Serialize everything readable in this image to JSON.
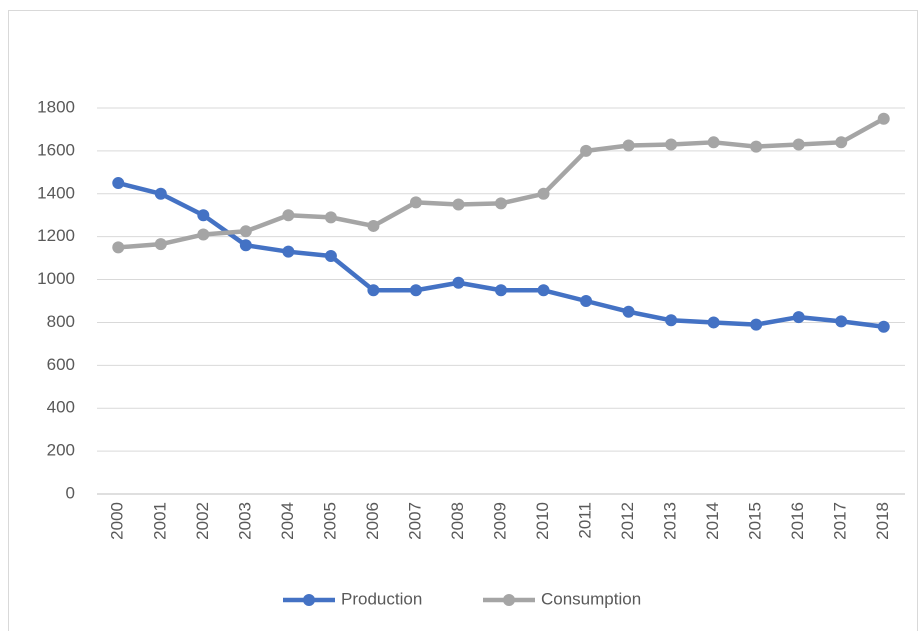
{
  "chart_data": {
    "type": "line",
    "categories": [
      "2000",
      "2001",
      "2002",
      "2003",
      "2004",
      "2005",
      "2006",
      "2007",
      "2008",
      "2009",
      "2010",
      "2011",
      "2012",
      "2013",
      "2014",
      "2015",
      "2016",
      "2017",
      "2018"
    ],
    "series": [
      {
        "name": "Production",
        "color": "#4472c4",
        "values": [
          1450,
          1400,
          1300,
          1160,
          1130,
          1110,
          950,
          950,
          985,
          950,
          950,
          900,
          850,
          810,
          800,
          790,
          825,
          805,
          780
        ]
      },
      {
        "name": "Consumption",
        "color": "#a5a5a5",
        "values": [
          1150,
          1165,
          1210,
          1225,
          1300,
          1290,
          1250,
          1360,
          1350,
          1355,
          1400,
          1600,
          1625,
          1630,
          1640,
          1620,
          1630,
          1640,
          1750
        ]
      }
    ],
    "ylim": [
      0,
      1800
    ],
    "yticks": [
      0,
      200,
      400,
      600,
      800,
      1000,
      1200,
      1400,
      1600,
      1800
    ],
    "grid": true,
    "legend": "bottom"
  }
}
